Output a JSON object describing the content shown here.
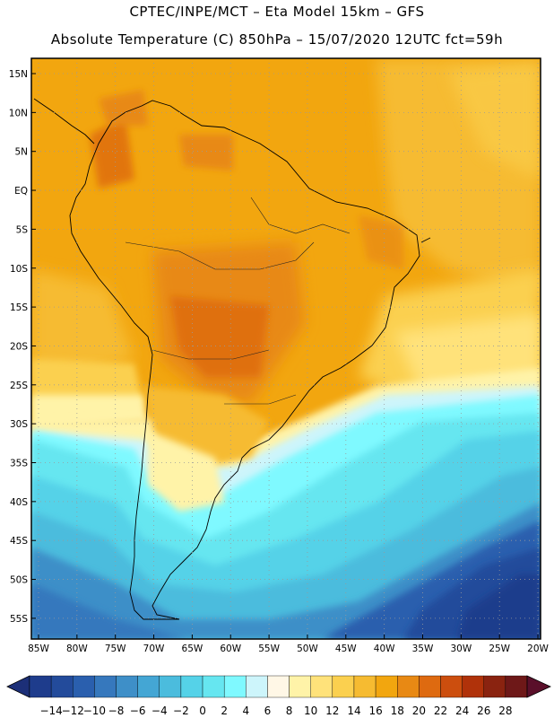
{
  "header": {
    "line1": "CPTEC/INPE/MCT –  Eta Model 15km – GFS",
    "line2": "Absolute Temperature (C) 850hPa – 15/07/2020 12UTC fct=59h"
  },
  "map": {
    "lat_labels": [
      "15N",
      "10N",
      "5N",
      "EQ",
      "5S",
      "10S",
      "15S",
      "20S",
      "25S",
      "30S",
      "35S",
      "40S",
      "45S",
      "50S",
      "55S"
    ],
    "lon_labels": [
      "85W",
      "80W",
      "75W",
      "70W",
      "65W",
      "60W",
      "55W",
      "50W",
      "45W",
      "40W",
      "35W",
      "30W",
      "25W",
      "20W"
    ]
  },
  "colorbar": {
    "labels": [
      "-14",
      "-12",
      "-10",
      "-8",
      "-6",
      "-4",
      "-2",
      "0",
      "2",
      "4",
      "6",
      "8",
      "10",
      "12",
      "14",
      "16",
      "18",
      "20",
      "22",
      "24",
      "26",
      "28"
    ],
    "colors": [
      "#1e3c8c",
      "#234b9b",
      "#2a5fae",
      "#3678bd",
      "#3e8fc8",
      "#44a6d4",
      "#4bbcdd",
      "#55d2e8",
      "#66e6f0",
      "#7ff9ff",
      "#cdf5fb",
      "#fff7e6",
      "#fff3a8",
      "#ffe27a",
      "#fbd04f",
      "#f6bb31",
      "#f2a60f",
      "#e88914",
      "#de6a10",
      "#cc4e0e",
      "#b0320a",
      "#8a2310",
      "#6e1818"
    ],
    "low_color": "#1c2f78",
    "high_color": "#5a0f2a"
  }
}
